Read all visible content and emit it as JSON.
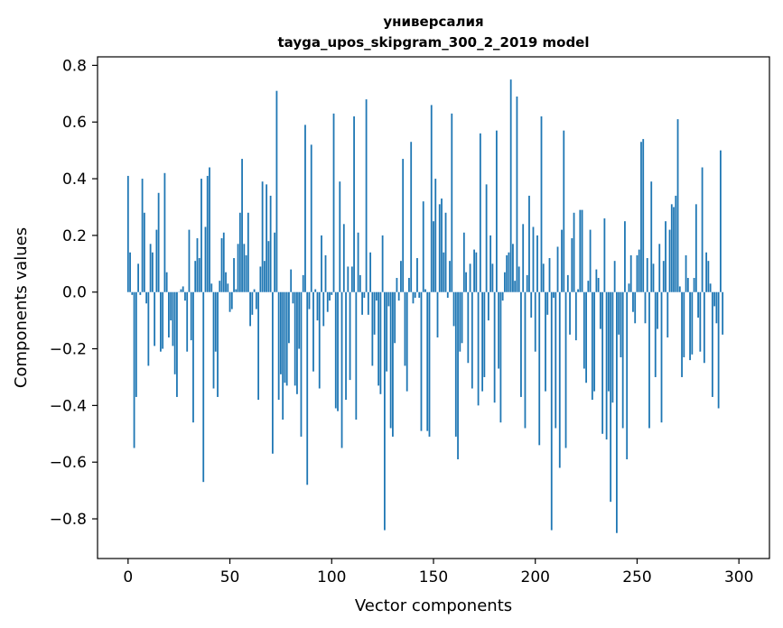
{
  "chart_data": {
    "type": "bar",
    "title": "универсалия",
    "subtitle": "tayga_upos_skipgram_300_2_2019 model",
    "xlabel": "Vector components",
    "ylabel": "Components values",
    "xlim": [
      -15,
      315
    ],
    "ylim": [
      -0.94,
      0.83
    ],
    "xticks": [
      0,
      50,
      100,
      150,
      200,
      250,
      300
    ],
    "xtick_labels": [
      "0",
      "50",
      "100",
      "150",
      "200",
      "250",
      "300"
    ],
    "yticks": [
      -0.8,
      -0.6,
      -0.4,
      -0.2,
      0.0,
      0.2,
      0.4,
      0.6,
      0.8
    ],
    "ytick_labels": [
      "−0.8",
      "−0.6",
      "−0.4",
      "−0.2",
      "0.0",
      "0.2",
      "0.4",
      "0.6",
      "0.8"
    ],
    "grid": false,
    "bar_color": "#1f77b4",
    "values": [
      0.41,
      0.14,
      -0.01,
      -0.55,
      -0.37,
      0.1,
      -0.01,
      0.4,
      0.28,
      -0.04,
      -0.26,
      0.17,
      0.14,
      -0.19,
      0.22,
      0.35,
      -0.21,
      -0.2,
      0.42,
      0.07,
      -0.16,
      -0.1,
      -0.19,
      -0.29,
      -0.37,
      0.0,
      0.01,
      0.02,
      -0.03,
      -0.21,
      0.22,
      -0.17,
      -0.46,
      0.11,
      0.19,
      0.12,
      0.4,
      -0.67,
      0.23,
      0.41,
      0.44,
      0.03,
      -0.34,
      -0.21,
      -0.37,
      0.04,
      0.19,
      0.21,
      0.07,
      0.03,
      -0.07,
      -0.06,
      0.12,
      0.01,
      0.17,
      0.28,
      0.47,
      0.17,
      0.13,
      0.28,
      -0.12,
      -0.08,
      0.01,
      -0.06,
      -0.38,
      0.09,
      0.39,
      0.11,
      0.38,
      0.18,
      0.34,
      -0.57,
      0.21,
      0.71,
      -0.38,
      -0.29,
      -0.45,
      -0.32,
      -0.33,
      -0.18,
      0.08,
      -0.04,
      -0.33,
      -0.36,
      -0.2,
      -0.51,
      0.06,
      0.59,
      -0.68,
      -0.06,
      0.52,
      -0.28,
      0.01,
      -0.1,
      -0.34,
      0.2,
      -0.12,
      0.13,
      -0.07,
      -0.03,
      -0.01,
      0.63,
      -0.41,
      -0.42,
      0.39,
      -0.55,
      0.24,
      -0.38,
      0.09,
      -0.31,
      0.09,
      0.62,
      -0.45,
      0.21,
      0.06,
      -0.08,
      -0.02,
      0.68,
      -0.08,
      0.14,
      -0.26,
      -0.15,
      -0.03,
      -0.33,
      -0.36,
      0.2,
      -0.84,
      -0.28,
      -0.05,
      -0.48,
      -0.51,
      -0.18,
      0.05,
      -0.03,
      0.11,
      0.47,
      -0.26,
      -0.35,
      0.05,
      0.53,
      -0.04,
      -0.02,
      0.12,
      -0.02,
      -0.49,
      0.32,
      0.01,
      -0.49,
      -0.51,
      0.66,
      0.25,
      0.4,
      -0.16,
      0.31,
      0.33,
      0.14,
      0.28,
      -0.02,
      0.11,
      0.63,
      -0.12,
      -0.51,
      -0.59,
      -0.21,
      -0.18,
      0.21,
      0.07,
      -0.25,
      0.1,
      -0.34,
      0.15,
      0.14,
      -0.4,
      0.56,
      -0.35,
      -0.3,
      0.38,
      -0.1,
      0.2,
      0.1,
      -0.39,
      0.57,
      -0.27,
      -0.46,
      -0.03,
      0.07,
      0.13,
      0.14,
      0.75,
      0.17,
      0.04,
      0.69,
      0.09,
      -0.37,
      0.24,
      -0.48,
      0.06,
      0.34,
      -0.09,
      0.23,
      -0.21,
      0.2,
      -0.54,
      0.62,
      0.1,
      -0.35,
      -0.08,
      0.12,
      -0.84,
      -0.02,
      -0.48,
      0.16,
      -0.62,
      0.22,
      0.57,
      -0.55,
      0.06,
      -0.15,
      0.19,
      0.28,
      -0.17,
      0.01,
      0.29,
      0.29,
      -0.27,
      -0.32,
      0.04,
      0.22,
      -0.38,
      -0.35,
      0.08,
      0.05,
      -0.13,
      -0.5,
      0.26,
      -0.52,
      -0.35,
      -0.74,
      -0.39,
      0.11,
      -0.85,
      -0.15,
      -0.23,
      -0.48,
      0.25,
      -0.59,
      0.03,
      0.13,
      -0.07,
      -0.11,
      0.13,
      0.15,
      0.53,
      0.54,
      -0.11,
      0.12,
      -0.48,
      0.39,
      0.1,
      -0.3,
      -0.13,
      0.17,
      -0.46,
      0.11,
      0.25,
      -0.16,
      0.22,
      0.31,
      0.3,
      0.34,
      0.61,
      0.02,
      -0.3,
      -0.23,
      0.13,
      0.05,
      -0.24,
      -0.22,
      0.05,
      0.31,
      -0.09,
      -0.21,
      0.44,
      -0.25,
      0.14,
      0.11,
      0.03,
      -0.37,
      -0.05,
      -0.11,
      -0.41,
      0.5,
      -0.15
    ]
  }
}
